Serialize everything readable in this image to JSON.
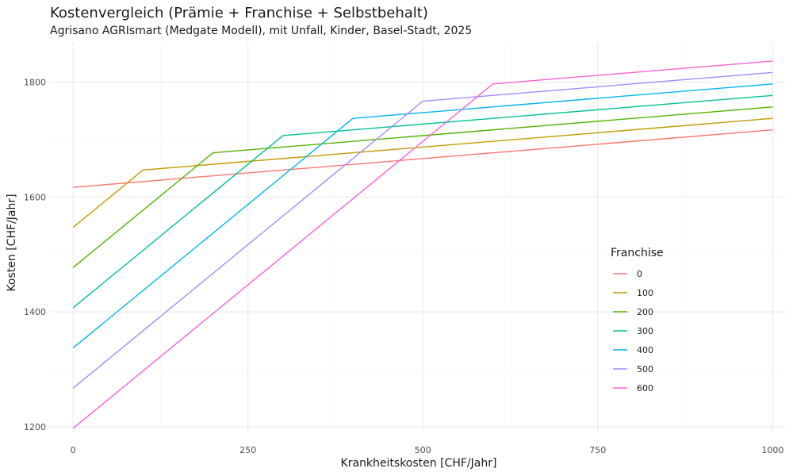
{
  "chart_data": {
    "type": "line",
    "title": "Kostenvergleich (Prämie + Franchise + Selbstbehalt)",
    "subtitle": "Agrisano AGRIsmart (Medgate Modell), mit Unfall, Kinder, Basel-Stadt, 2025",
    "xlabel": "Krankheitskosten [CHF/Jahr]",
    "ylabel": "Kosten [CHF/Jahr]",
    "xlim": [
      -33,
      1020
    ],
    "ylim": [
      1190,
      1870
    ],
    "x_ticks": [
      0,
      250,
      500,
      750,
      1000
    ],
    "x_tick_labels": [
      "0",
      "250",
      "500",
      "750",
      "1000"
    ],
    "y_ticks": [
      1200,
      1400,
      1600,
      1800
    ],
    "y_tick_labels": [
      "1200",
      "1400",
      "1600",
      "1800"
    ],
    "grid": true,
    "legend": {
      "title": "Franchise",
      "placement": "right"
    },
    "series": [
      {
        "name": "0",
        "color": "#F8766D",
        "x": [
          0,
          1000
        ],
        "y": [
          1617,
          1717
        ]
      },
      {
        "name": "100",
        "color": "#C49A00",
        "x": [
          0,
          100,
          1000
        ],
        "y": [
          1547,
          1647,
          1737
        ]
      },
      {
        "name": "200",
        "color": "#53B400",
        "x": [
          0,
          200,
          1000
        ],
        "y": [
          1477,
          1677,
          1757
        ]
      },
      {
        "name": "300",
        "color": "#00C094",
        "x": [
          0,
          300,
          1000
        ],
        "y": [
          1407,
          1707,
          1777
        ]
      },
      {
        "name": "400",
        "color": "#00B6EB",
        "x": [
          0,
          400,
          1000
        ],
        "y": [
          1337,
          1737,
          1797
        ]
      },
      {
        "name": "500",
        "color": "#A58AFF",
        "x": [
          0,
          500,
          1000
        ],
        "y": [
          1267,
          1767,
          1817
        ]
      },
      {
        "name": "600",
        "color": "#FB61D7",
        "x": [
          0,
          600,
          1000
        ],
        "y": [
          1197,
          1797,
          1837
        ]
      }
    ]
  }
}
